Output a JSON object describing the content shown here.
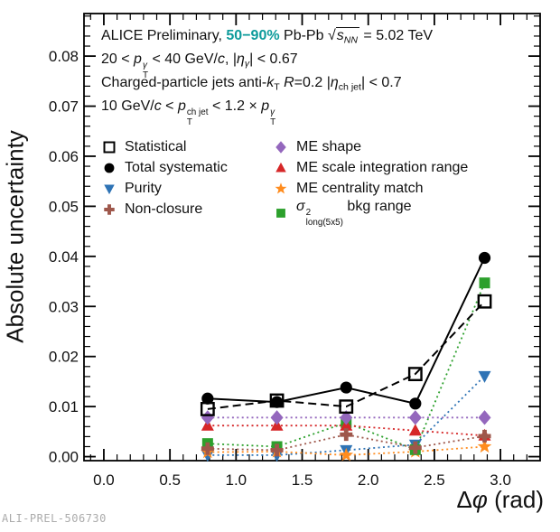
{
  "figure": {
    "watermark": "ALI-PREL-506730",
    "background": "#ffffff",
    "accent_teal": "#0d9b9b"
  },
  "rich": {
    "header_lines": [
      [
        {
          "t": "ALICE Preliminary, "
        },
        {
          "t": "50−90%",
          "s": "accent"
        },
        {
          "t": " Pb-Pb "
        },
        {
          "sqrt": [
            {
              "t": "s",
              "s": "i"
            },
            {
              "t": "NN",
              "s": "sub i"
            }
          ]
        },
        {
          "t": " = 5.02 TeV"
        }
      ],
      [
        {
          "t": "20 < "
        },
        {
          "t": "p",
          "s": "i"
        },
        {
          "supsub": {
            "sup": [
              {
                "t": "γ",
                "s": "i"
              }
            ],
            "sub": [
              {
                "t": "T"
              }
            ]
          }
        },
        {
          "t": " < 40 GeV/"
        },
        {
          "t": "c",
          "s": "i"
        },
        {
          "t": ", |"
        },
        {
          "t": "η",
          "s": "i"
        },
        {
          "t": "γ",
          "s": "sub i"
        },
        {
          "t": "| < 0.67"
        }
      ],
      [
        {
          "t": "Charged-particle jets anti-"
        },
        {
          "t": "k",
          "s": "i"
        },
        {
          "t": "T",
          "s": "sub"
        },
        {
          "t": " "
        },
        {
          "t": "R",
          "s": "i"
        },
        {
          "t": "=0.2 |"
        },
        {
          "t": "η",
          "s": "i"
        },
        {
          "t": "ch jet",
          "s": "sub"
        },
        {
          "t": "| < 0.7"
        }
      ],
      [
        {
          "t": "10 GeV/"
        },
        {
          "t": "c",
          "s": "i"
        },
        {
          "t": " < "
        },
        {
          "t": "p",
          "s": "i"
        },
        {
          "supsub": {
            "sup": [
              {
                "t": "ch jet"
              }
            ],
            "sub": [
              {
                "t": "T"
              }
            ]
          }
        },
        {
          "t": " < 1.2 × "
        },
        {
          "t": "p",
          "s": "i"
        },
        {
          "supsub": {
            "sup": [
              {
                "t": "γ",
                "s": "i"
              }
            ],
            "sub": [
              {
                "t": "T"
              }
            ]
          }
        }
      ]
    ],
    "xlabel": [
      {
        "t": "Δ"
      },
      {
        "t": "φ",
        "s": "i"
      },
      {
        "t": " (rad)"
      }
    ]
  },
  "legend": {
    "columns": [
      {
        "items": [
          {
            "name": "statistical",
            "marker": "square-open",
            "color": "#000000",
            "label": [
              {
                "t": "Statistical"
              }
            ]
          },
          {
            "name": "total-systematic",
            "marker": "circle",
            "color": "#000000",
            "label": [
              {
                "t": "Total systematic"
              }
            ]
          },
          {
            "name": "purity",
            "marker": "triangle-down",
            "color": "#2e73b5",
            "label": [
              {
                "t": "Purity"
              }
            ]
          },
          {
            "name": "non-closure",
            "marker": "cross",
            "color": "#9e574b",
            "label": [
              {
                "t": "Non-closure"
              }
            ]
          }
        ]
      },
      {
        "items": [
          {
            "name": "me-shape",
            "marker": "diamond",
            "color": "#9467bd",
            "label": [
              {
                "t": "ME shape"
              }
            ]
          },
          {
            "name": "me-scale-integration-range",
            "marker": "triangle-up",
            "color": "#d62728",
            "label": [
              {
                "t": "ME scale integration range"
              }
            ]
          },
          {
            "name": "me-centrality-match",
            "marker": "star",
            "color": "#ff8c1e",
            "label": [
              {
                "t": "ME centrality match"
              }
            ]
          },
          {
            "name": "sigma-long-bkg-range",
            "marker": "square",
            "color": "#2ca02c",
            "label": [
              {
                "t": "σ",
                "s": "i"
              },
              {
                "supsub": {
                  "sup": [
                    {
                      "t": "2"
                    }
                  ],
                  "sub": [
                    {
                      "t": "long(5x5)"
                    }
                  ]
                }
              },
              {
                "t": " bkg range"
              }
            ]
          }
        ]
      }
    ]
  },
  "chart_data": {
    "type": "line",
    "title": "ALICE Preliminary, 50−90% Pb-Pb sqrt(s_NN) = 5.02 TeV",
    "xlabel": "Δφ (rad)",
    "ylabel": "Absolute uncertainty",
    "xlim": [
      -0.15,
      3.3
    ],
    "ylim": [
      -0.0008,
      0.0885
    ],
    "grid": false,
    "legend_position": "upper-left-inside",
    "x_major_ticks": [
      0,
      0.5,
      1.0,
      1.5,
      2.0,
      2.5,
      3.0
    ],
    "x_tick_labels": [
      "0.0",
      "0.5",
      "1.0",
      "1.5",
      "2.0",
      "2.5",
      "3.0"
    ],
    "x_minor_step": 0.1,
    "y_major_ticks": [
      0,
      0.01,
      0.02,
      0.03,
      0.04,
      0.05,
      0.06,
      0.07,
      0.08
    ],
    "y_tick_labels": [
      "0.00",
      "0.01",
      "0.02",
      "0.03",
      "0.04",
      "0.05",
      "0.06",
      "0.07",
      "0.08"
    ],
    "y_minor_step": 0.002,
    "x": [
      0.785,
      1.309,
      1.833,
      2.356,
      2.88
    ],
    "series": [
      {
        "name": "Statistical",
        "slug": "statistical",
        "marker": "square-open",
        "color": "#000000",
        "line": "dashed",
        "values": [
          0.0095,
          0.0112,
          0.01,
          0.0165,
          0.031
        ]
      },
      {
        "name": "Total systematic",
        "slug": "total-systematic",
        "marker": "circle",
        "color": "#000000",
        "line": "solid",
        "values": [
          0.0116,
          0.0109,
          0.0138,
          0.0106,
          0.0397
        ]
      },
      {
        "name": "Purity",
        "slug": "purity",
        "marker": "triangle-down",
        "color": "#2e73b5",
        "line": "dotted",
        "values": [
          0.0003,
          0.0003,
          0.0013,
          0.0024,
          0.0161
        ]
      },
      {
        "name": "Non-closure",
        "slug": "non-closure",
        "marker": "cross",
        "color": "#9e574b",
        "line": "dotted",
        "values": [
          0.0016,
          0.0013,
          0.0044,
          0.0018,
          0.0041
        ]
      },
      {
        "name": "ME shape",
        "slug": "me-shape",
        "marker": "diamond",
        "color": "#9467bd",
        "line": "dotted",
        "values": [
          0.0078,
          0.0078,
          0.0078,
          0.0078,
          0.0078
        ]
      },
      {
        "name": "ME scale integration range",
        "slug": "me-scale-integration-range",
        "marker": "triangle-up",
        "color": "#d62728",
        "line": "dotted",
        "values": [
          0.0062,
          0.0062,
          0.0062,
          0.0052,
          0.0042
        ]
      },
      {
        "name": "ME centrality match",
        "slug": "me-centrality-match",
        "marker": "star",
        "color": "#ff8c1e",
        "line": "dotted",
        "values": [
          0.0009,
          0.001,
          0.0003,
          0.001,
          0.002
        ]
      },
      {
        "name": "σ2_long(5x5) bkg range",
        "slug": "sigma-long-bkg-range",
        "marker": "square",
        "color": "#2ca02c",
        "line": "dotted",
        "values": [
          0.0026,
          0.002,
          0.0068,
          0.0014,
          0.0347
        ]
      }
    ],
    "draw_order": [
      "purity",
      "me-centrality-match",
      "sigma-long-bkg-range",
      "me-scale-integration-range",
      "non-closure",
      "me-shape",
      "total-systematic",
      "statistical"
    ]
  }
}
